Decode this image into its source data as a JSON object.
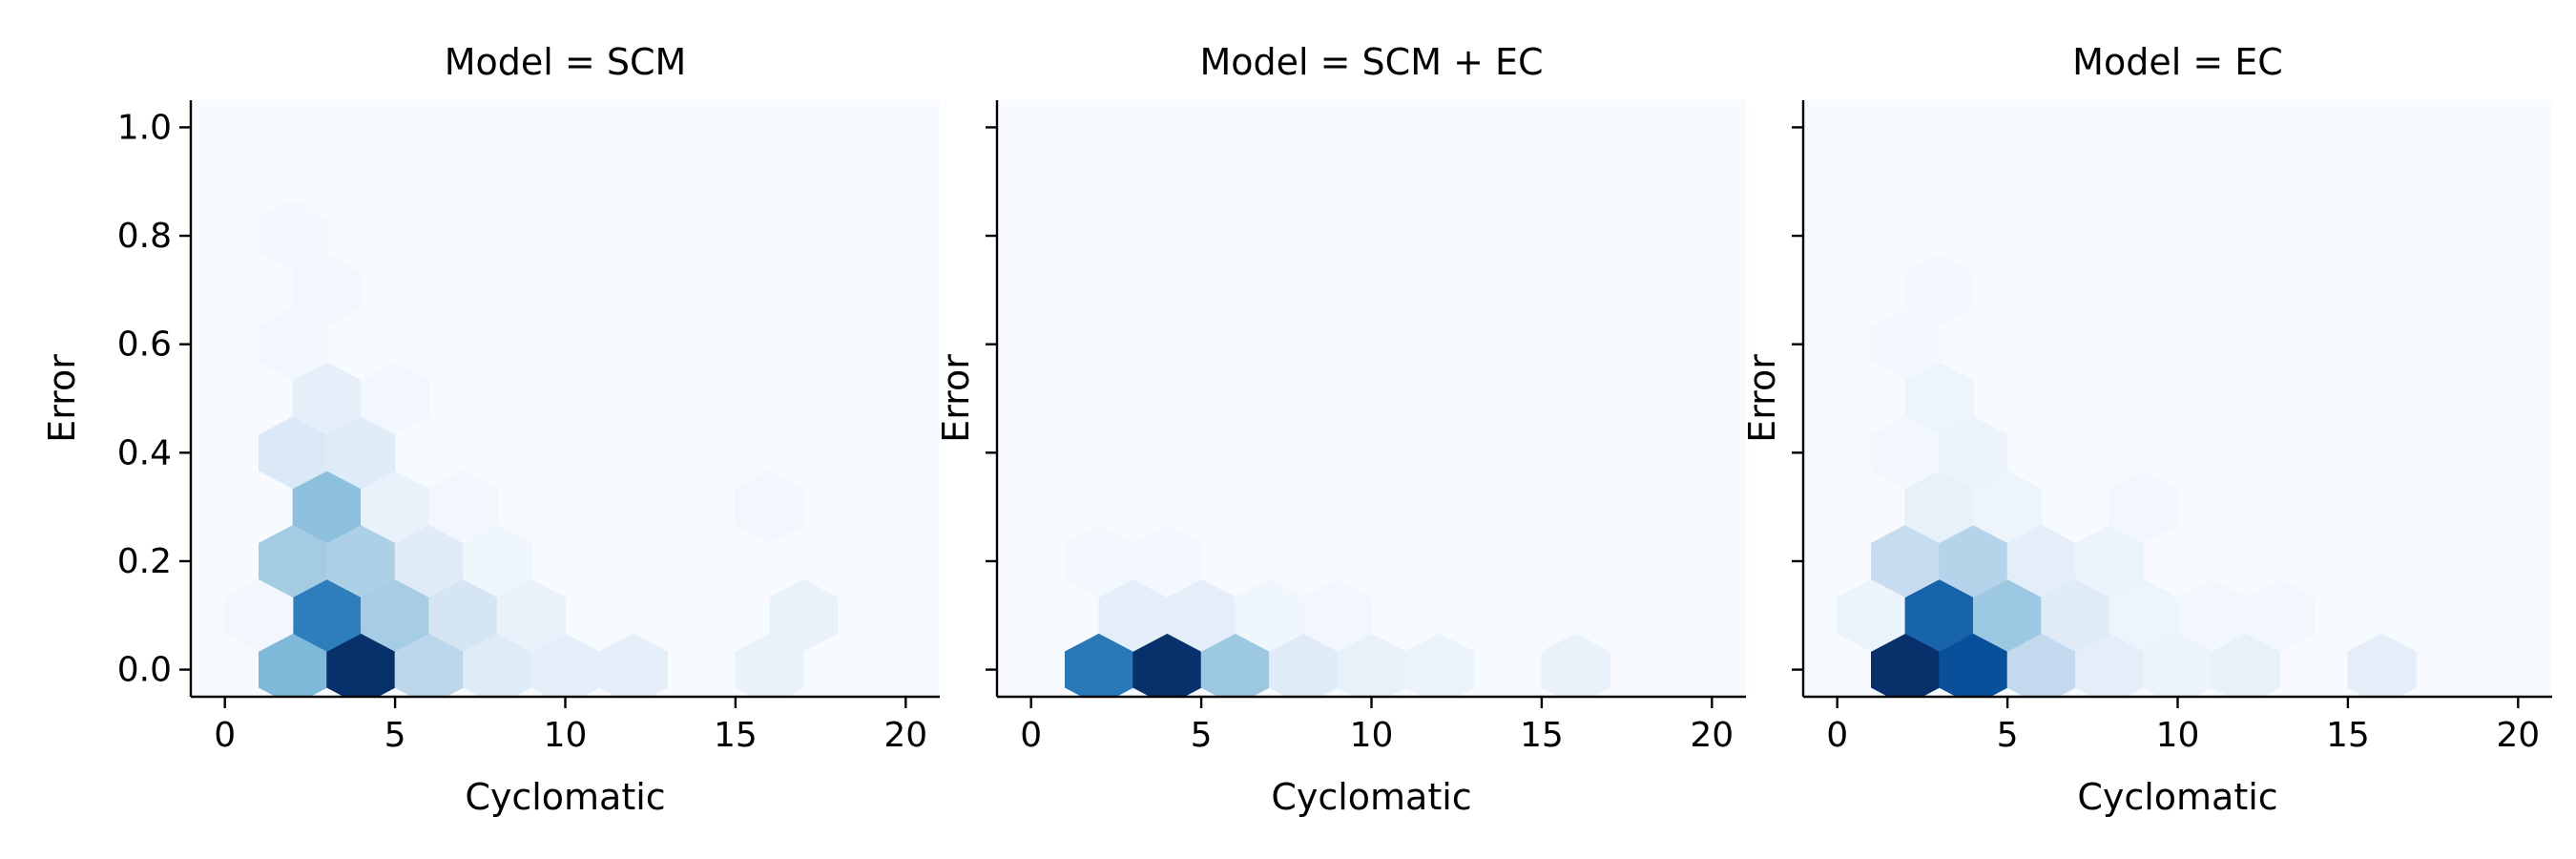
{
  "chart_data": [
    {
      "type": "heatmap",
      "subtype": "hexbin",
      "title": "Model = SCM",
      "xlabel": "Cyclomatic",
      "ylabel": "Error",
      "xlim": [
        -1,
        21
      ],
      "ylim": [
        -0.05,
        1.05
      ],
      "xticks": [
        "0",
        "5",
        "10",
        "15",
        "20"
      ],
      "yticks": [
        "0.0",
        "0.2",
        "0.4",
        "0.6",
        "0.8",
        "1.0"
      ],
      "colormap": "Blues",
      "grid": false,
      "background_color": "#f7fbff",
      "density_scale": [
        0,
        1
      ],
      "cells": [
        {
          "x": 2,
          "y": 0.0,
          "v": 0.45
        },
        {
          "x": 4,
          "y": 0.0,
          "v": 1.0
        },
        {
          "x": 6,
          "y": 0.0,
          "v": 0.28
        },
        {
          "x": 8,
          "y": 0.0,
          "v": 0.12
        },
        {
          "x": 10,
          "y": 0.0,
          "v": 0.09
        },
        {
          "x": 12,
          "y": 0.0,
          "v": 0.09
        },
        {
          "x": 16,
          "y": 0.0,
          "v": 0.07
        },
        {
          "x": 3,
          "y": 0.1,
          "v": 0.7
        },
        {
          "x": 5,
          "y": 0.1,
          "v": 0.35
        },
        {
          "x": 7,
          "y": 0.1,
          "v": 0.17
        },
        {
          "x": 9,
          "y": 0.1,
          "v": 0.07
        },
        {
          "x": 17,
          "y": 0.1,
          "v": 0.07
        },
        {
          "x": 1,
          "y": 0.1,
          "v": 0.03
        },
        {
          "x": 2,
          "y": 0.2,
          "v": 0.36
        },
        {
          "x": 4,
          "y": 0.2,
          "v": 0.33
        },
        {
          "x": 6,
          "y": 0.2,
          "v": 0.12
        },
        {
          "x": 8,
          "y": 0.2,
          "v": 0.04
        },
        {
          "x": 3,
          "y": 0.3,
          "v": 0.42
        },
        {
          "x": 5,
          "y": 0.3,
          "v": 0.07
        },
        {
          "x": 7,
          "y": 0.3,
          "v": 0.03
        },
        {
          "x": 16,
          "y": 0.3,
          "v": 0.03
        },
        {
          "x": 2,
          "y": 0.4,
          "v": 0.14
        },
        {
          "x": 4,
          "y": 0.4,
          "v": 0.12
        },
        {
          "x": 3,
          "y": 0.5,
          "v": 0.09
        },
        {
          "x": 5,
          "y": 0.5,
          "v": 0.03
        },
        {
          "x": 2,
          "y": 0.6,
          "v": 0.03
        },
        {
          "x": 3,
          "y": 0.7,
          "v": 0.03
        },
        {
          "x": 2,
          "y": 0.8,
          "v": 0.02
        }
      ]
    },
    {
      "type": "heatmap",
      "subtype": "hexbin",
      "title": "Model = SCM + EC",
      "xlabel": "Cyclomatic",
      "ylabel": "Error",
      "xlim": [
        -1,
        21
      ],
      "ylim": [
        -0.05,
        1.05
      ],
      "xticks": [
        "0",
        "5",
        "10",
        "15",
        "20"
      ],
      "yticks": [],
      "colormap": "Blues",
      "grid": false,
      "background_color": "#f7fbff",
      "density_scale": [
        0,
        1
      ],
      "cells": [
        {
          "x": 2,
          "y": 0.0,
          "v": 0.72
        },
        {
          "x": 4,
          "y": 0.0,
          "v": 1.0
        },
        {
          "x": 6,
          "y": 0.0,
          "v": 0.38
        },
        {
          "x": 8,
          "y": 0.0,
          "v": 0.12
        },
        {
          "x": 10,
          "y": 0.0,
          "v": 0.08
        },
        {
          "x": 12,
          "y": 0.0,
          "v": 0.06
        },
        {
          "x": 16,
          "y": 0.0,
          "v": 0.07
        },
        {
          "x": 3,
          "y": 0.1,
          "v": 0.1
        },
        {
          "x": 5,
          "y": 0.1,
          "v": 0.1
        },
        {
          "x": 7,
          "y": 0.1,
          "v": 0.04
        },
        {
          "x": 9,
          "y": 0.1,
          "v": 0.03
        },
        {
          "x": 2,
          "y": 0.2,
          "v": 0.02
        },
        {
          "x": 4,
          "y": 0.2,
          "v": 0.02
        }
      ]
    },
    {
      "type": "heatmap",
      "subtype": "hexbin",
      "title": "Model = EC",
      "xlabel": "Cyclomatic",
      "ylabel": "Error",
      "xlim": [
        -1,
        21
      ],
      "ylim": [
        -0.05,
        1.05
      ],
      "xticks": [
        "0",
        "5",
        "10",
        "15",
        "20"
      ],
      "yticks": [],
      "colormap": "Blues",
      "grid": false,
      "background_color": "#f7fbff",
      "density_scale": [
        0,
        1
      ],
      "cells": [
        {
          "x": 2,
          "y": 0.0,
          "v": 1.0
        },
        {
          "x": 4,
          "y": 0.0,
          "v": 0.88
        },
        {
          "x": 6,
          "y": 0.0,
          "v": 0.26
        },
        {
          "x": 8,
          "y": 0.0,
          "v": 0.1
        },
        {
          "x": 10,
          "y": 0.0,
          "v": 0.06
        },
        {
          "x": 12,
          "y": 0.0,
          "v": 0.08
        },
        {
          "x": 16,
          "y": 0.0,
          "v": 0.1
        },
        {
          "x": 1,
          "y": 0.1,
          "v": 0.06
        },
        {
          "x": 3,
          "y": 0.1,
          "v": 0.8
        },
        {
          "x": 5,
          "y": 0.1,
          "v": 0.38
        },
        {
          "x": 7,
          "y": 0.1,
          "v": 0.12
        },
        {
          "x": 9,
          "y": 0.1,
          "v": 0.05
        },
        {
          "x": 11,
          "y": 0.1,
          "v": 0.03
        },
        {
          "x": 13,
          "y": 0.1,
          "v": 0.03
        },
        {
          "x": 2,
          "y": 0.2,
          "v": 0.24
        },
        {
          "x": 4,
          "y": 0.2,
          "v": 0.3
        },
        {
          "x": 6,
          "y": 0.2,
          "v": 0.1
        },
        {
          "x": 8,
          "y": 0.2,
          "v": 0.06
        },
        {
          "x": 3,
          "y": 0.3,
          "v": 0.08
        },
        {
          "x": 5,
          "y": 0.3,
          "v": 0.05
        },
        {
          "x": 9,
          "y": 0.3,
          "v": 0.03
        },
        {
          "x": 2,
          "y": 0.4,
          "v": 0.03
        },
        {
          "x": 4,
          "y": 0.4,
          "v": 0.06
        },
        {
          "x": 3,
          "y": 0.5,
          "v": 0.05
        },
        {
          "x": 2,
          "y": 0.6,
          "v": 0.02
        },
        {
          "x": 3,
          "y": 0.7,
          "v": 0.02
        }
      ]
    }
  ]
}
